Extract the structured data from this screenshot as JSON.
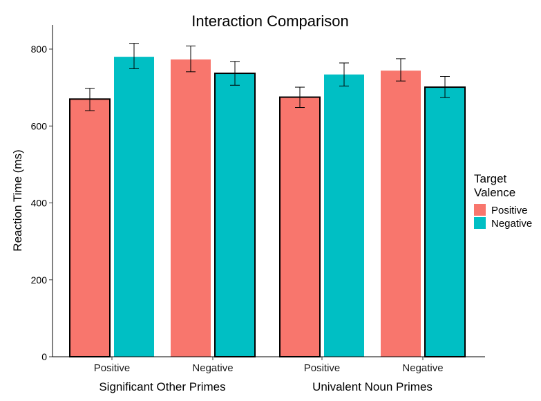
{
  "chart_data": {
    "type": "bar",
    "title": "Interaction Comparison",
    "ylabel": "Reaction Time (ms)",
    "ylim": [
      0,
      860
    ],
    "yticks": [
      0,
      200,
      400,
      600,
      800
    ],
    "grid": false,
    "legend": {
      "title_lines": [
        "Target",
        "Valence"
      ],
      "placement": "right",
      "entries": [
        {
          "name": "Positive",
          "color": "#F8766D"
        },
        {
          "name": "Negative",
          "color": "#00BFC4"
        }
      ]
    },
    "groups": [
      {
        "label": "Significant Other Primes",
        "categories": [
          {
            "label": "Positive",
            "bars": [
              {
                "valence": "Positive",
                "value": 670,
                "err_low": 640,
                "err_high": 698,
                "outlined": true
              },
              {
                "valence": "Negative",
                "value": 780,
                "err_low": 749,
                "err_high": 815,
                "outlined": false
              }
            ]
          },
          {
            "label": "Negative",
            "bars": [
              {
                "valence": "Positive",
                "value": 773,
                "err_low": 741,
                "err_high": 808,
                "outlined": false
              },
              {
                "valence": "Negative",
                "value": 737,
                "err_low": 706,
                "err_high": 768,
                "outlined": true
              }
            ]
          }
        ]
      },
      {
        "label": "Univalent Noun Primes",
        "categories": [
          {
            "label": "Positive",
            "bars": [
              {
                "valence": "Positive",
                "value": 675,
                "err_low": 648,
                "err_high": 701,
                "outlined": true
              },
              {
                "valence": "Negative",
                "value": 734,
                "err_low": 704,
                "err_high": 764,
                "outlined": false
              }
            ]
          },
          {
            "label": "Negative",
            "bars": [
              {
                "valence": "Positive",
                "value": 744,
                "err_low": 717,
                "err_high": 775,
                "outlined": false
              },
              {
                "valence": "Negative",
                "value": 701,
                "err_low": 674,
                "err_high": 729,
                "outlined": true
              }
            ]
          }
        ]
      }
    ]
  }
}
